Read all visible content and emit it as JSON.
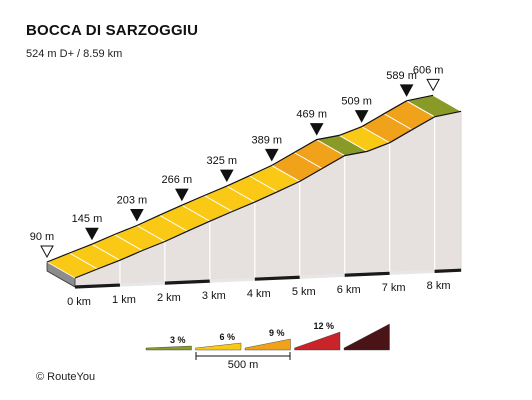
{
  "chart_data": {
    "type": "area",
    "title": "BOCCA DI SARZOGGIU",
    "subtitle": "524 m D+ / 8.59 km",
    "x_unit": "km",
    "y_unit": "m",
    "x_ticks": [
      0,
      1,
      2,
      3,
      4,
      5,
      6,
      7,
      8
    ],
    "x_tick_labels": [
      "0 km",
      "1 km",
      "2 km",
      "3 km",
      "4 km",
      "5 km",
      "6 km",
      "7 km",
      "8 km"
    ],
    "total_distance_km": 8.59,
    "elevation_points": [
      {
        "km": 0,
        "m": 90
      },
      {
        "km": 0.5,
        "m": 118
      },
      {
        "km": 1,
        "m": 145
      },
      {
        "km": 1.5,
        "m": 175
      },
      {
        "km": 2,
        "m": 203
      },
      {
        "km": 2.5,
        "m": 235
      },
      {
        "km": 3,
        "m": 266
      },
      {
        "km": 3.5,
        "m": 296
      },
      {
        "km": 4,
        "m": 325
      },
      {
        "km": 4.5,
        "m": 357
      },
      {
        "km": 5,
        "m": 389
      },
      {
        "km": 5.5,
        "m": 429
      },
      {
        "km": 6,
        "m": 469
      },
      {
        "km": 6.5,
        "m": 482
      },
      {
        "km": 7,
        "m": 509
      },
      {
        "km": 7.5,
        "m": 549
      },
      {
        "km": 8,
        "m": 589
      },
      {
        "km": 8.59,
        "m": 606
      }
    ],
    "elevation_labels": [
      {
        "km": 0,
        "text": "90 m",
        "marker": "start"
      },
      {
        "km": 1,
        "text": "145 m",
        "marker": "km"
      },
      {
        "km": 2,
        "text": "203 m",
        "marker": "km"
      },
      {
        "km": 3,
        "text": "266 m",
        "marker": "km"
      },
      {
        "km": 4,
        "text": "325 m",
        "marker": "km"
      },
      {
        "km": 5,
        "text": "389 m",
        "marker": "km"
      },
      {
        "km": 6,
        "text": "469 m",
        "marker": "km"
      },
      {
        "km": 7,
        "text": "509 m",
        "marker": "km"
      },
      {
        "km": 8,
        "text": "589 m",
        "marker": "km"
      },
      {
        "km": 8.59,
        "text": "606 m",
        "marker": "end"
      }
    ],
    "gradient_legend": [
      {
        "label": "3 %",
        "color": "#8a9a26"
      },
      {
        "label": "6 %",
        "color": "#f9c916"
      },
      {
        "label": "9 %",
        "color": "#f0a21a"
      },
      {
        "label": "12 %",
        "color": "#c8242a"
      },
      {
        "label": "",
        "color": "#4a1416"
      }
    ],
    "scale_bar_label": "500 m"
  },
  "footer": {
    "copyright": "©  RouteYou"
  }
}
